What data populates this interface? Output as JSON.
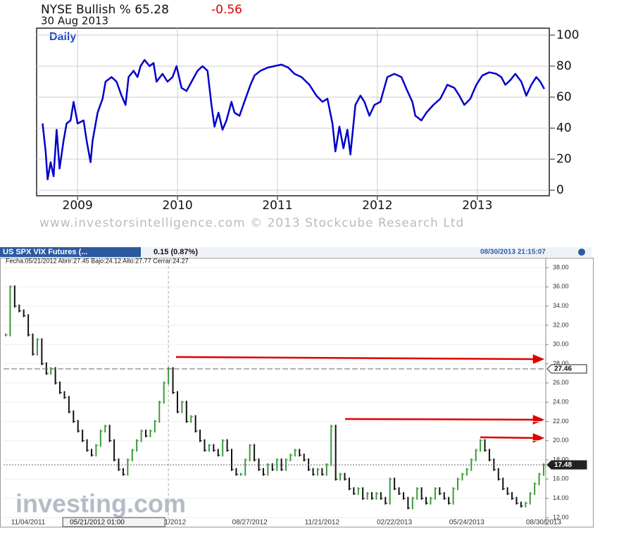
{
  "chart_data": [
    {
      "type": "line",
      "title": "NYSE Bullish % 65.28",
      "change": -0.56,
      "date": "30 Aug 2013",
      "label": "Daily",
      "footer": "www.investorsintelligence.com © 2013 Stockcube Research Ltd",
      "x": [
        2008.65,
        2008.68,
        2008.7,
        2008.73,
        2008.76,
        2008.79,
        2008.82,
        2008.86,
        2008.89,
        2008.93,
        2008.96,
        2009.0,
        2009.06,
        2009.09,
        2009.13,
        2009.15,
        2009.2,
        2009.25,
        2009.28,
        2009.34,
        2009.39,
        2009.44,
        2009.48,
        2009.51,
        2009.56,
        2009.6,
        2009.63,
        2009.67,
        2009.72,
        2009.76,
        2009.79,
        2009.85,
        2009.9,
        2009.95,
        2009.99,
        2010.04,
        2010.09,
        2010.14,
        2010.2,
        2010.25,
        2010.3,
        2010.34,
        2010.37,
        2010.41,
        2010.45,
        2010.49,
        2010.54,
        2010.57,
        2010.62,
        2010.68,
        2010.73,
        2010.77,
        2010.83,
        2010.9,
        2010.97,
        2011.04,
        2011.11,
        2011.17,
        2011.24,
        2011.32,
        2011.39,
        2011.45,
        2011.5,
        2011.55,
        2011.58,
        2011.62,
        2011.66,
        2011.7,
        2011.73,
        2011.78,
        2011.83,
        2011.87,
        2011.92,
        2011.97,
        2012.03,
        2012.1,
        2012.17,
        2012.24,
        2012.3,
        2012.35,
        2012.38,
        2012.44,
        2012.49,
        2012.56,
        2012.63,
        2012.7,
        2012.77,
        2012.82,
        2012.87,
        2012.93,
        2012.99,
        2013.05,
        2013.12,
        2013.19,
        2013.24,
        2013.28,
        2013.33,
        2013.38,
        2013.44,
        2013.49,
        2013.54,
        2013.59,
        2013.63,
        2013.67
      ],
      "series": [
        {
          "name": "NYSE Bullish %",
          "color": "#0000cc",
          "values": [
            43,
            25,
            7,
            18,
            9,
            39,
            14,
            32,
            43,
            45,
            57,
            43,
            45,
            32,
            18,
            32,
            50,
            59,
            70,
            73,
            70,
            61,
            55,
            73,
            77,
            73,
            80,
            84,
            80,
            82,
            70,
            75,
            70,
            73,
            80,
            66,
            64,
            70,
            77,
            80,
            77,
            55,
            41,
            50,
            39,
            45,
            57,
            50,
            48,
            59,
            68,
            74,
            77,
            79,
            80,
            81,
            79,
            75,
            73,
            68,
            61,
            57,
            59,
            43,
            25,
            41,
            27,
            39,
            23,
            55,
            61,
            57,
            48,
            55,
            57,
            73,
            75,
            73,
            64,
            57,
            48,
            45,
            50,
            55,
            59,
            68,
            66,
            61,
            55,
            59,
            68,
            74,
            76,
            75,
            73,
            68,
            71,
            75,
            70,
            61,
            68,
            73,
            70,
            65.28
          ]
        }
      ],
      "xlim": [
        2008.59,
        2013.72
      ],
      "xticks": [
        2009,
        2010,
        2011,
        2012,
        2013
      ],
      "ylim": [
        -3.6,
        104.5
      ],
      "yticks": [
        0,
        20,
        40,
        60,
        80,
        100
      ],
      "grid": true
    },
    {
      "type": "candlestick",
      "name": "US SPX VIX Futures (...",
      "change_text": "0.15 (0.87%)",
      "timestamp": "08/30/2013 21:15:07",
      "info": "Fecha:05/21/2012 Abrir:27.45 Bajo:24.12 Alto:27.77 Cerrar:24.27",
      "watermark": "investing.com",
      "crosshair_label": "05/21/2012 01:00",
      "categories": [
        null,
        null,
        null,
        null,
        null,
        "11/04/2011",
        null,
        null,
        null,
        null,
        null,
        null,
        null,
        null,
        null,
        null,
        null,
        null,
        null,
        null,
        null,
        null,
        null,
        null,
        null,
        null,
        null,
        null,
        null,
        null,
        null,
        null,
        null,
        null,
        null,
        null,
        "05/21/2012",
        null,
        null,
        null,
        null,
        null,
        null,
        null,
        null,
        null,
        null,
        null,
        null,
        null,
        null,
        null,
        null,
        null,
        "08/27/2012",
        null,
        null,
        null,
        null,
        null,
        null,
        null,
        null,
        null,
        null,
        null,
        null,
        null,
        null,
        null,
        "11/21/2012",
        null,
        null,
        null,
        null,
        null,
        null,
        null,
        null,
        null,
        null,
        null,
        null,
        null,
        null,
        null,
        "02/22/2013",
        null,
        null,
        null,
        null,
        null,
        null,
        null,
        null,
        null,
        null,
        null,
        null,
        null,
        null,
        null,
        "05/24/2013",
        null,
        null,
        null,
        null,
        null,
        null,
        null,
        null,
        null,
        null,
        null,
        null,
        null,
        null,
        null,
        null,
        "08/30/2013"
      ],
      "up_color": "#3a9a3a",
      "down_color": "#111111",
      "values": [
        31,
        36,
        34,
        33.5,
        33,
        31,
        29,
        30.5,
        28,
        27,
        27.5,
        26,
        25,
        24.5,
        23,
        22,
        21,
        20,
        19,
        18.5,
        19.5,
        21,
        21.5,
        20,
        18,
        17,
        16.5,
        18,
        19,
        20,
        21,
        20.5,
        21,
        22,
        24,
        26,
        27.5,
        25,
        23,
        24,
        22,
        22.5,
        21,
        20,
        19,
        19.5,
        19,
        18.5,
        20,
        19,
        17,
        16.5,
        16.5,
        18,
        19.5,
        18,
        17,
        16.5,
        17.5,
        17,
        18,
        17,
        18,
        18.5,
        19,
        18.5,
        18,
        17,
        16.5,
        17,
        16.5,
        17.5,
        21.5,
        16,
        16.5,
        16,
        15,
        14.5,
        15,
        14,
        14.5,
        14,
        14.5,
        14,
        13.5,
        16,
        15,
        14.5,
        14,
        13,
        14,
        15,
        14,
        13.5,
        14,
        15,
        14.5,
        14,
        13.5,
        15,
        16,
        16.5,
        17,
        18,
        19,
        20,
        19,
        18,
        17,
        16,
        15,
        14.5,
        14,
        13.5,
        13.2,
        13.5,
        14.5,
        15.5,
        16.5,
        17.48
      ],
      "price_labels": [
        27.46,
        17.48
      ],
      "ylim": [
        11.63,
        38.37
      ],
      "yticks": [
        {
          "value": 12,
          "label": "12.00"
        },
        {
          "value": 14,
          "label": "14.00"
        },
        {
          "value": 16,
          "label": "16.00"
        },
        {
          "value": 18,
          "label": "18.00"
        },
        {
          "value": 20,
          "label": "20.00"
        },
        {
          "value": 22,
          "label": "22.00"
        },
        {
          "value": 24,
          "label": "24.00"
        },
        {
          "value": 26,
          "label": "26.00"
        },
        {
          "value": 28,
          "label": "28.00"
        },
        {
          "value": 30,
          "label": "30.00"
        },
        {
          "value": 32,
          "label": "32.00"
        },
        {
          "value": 34,
          "label": "34.00"
        },
        {
          "value": 36,
          "label": "36.00"
        },
        {
          "value": 38,
          "label": "38.00"
        }
      ],
      "grid": true
    }
  ]
}
